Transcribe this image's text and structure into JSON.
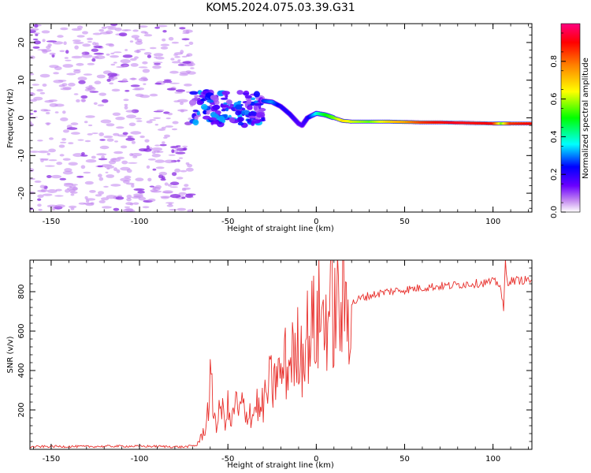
{
  "title": "KOM5.2024.075.03.39.G31",
  "colors": {
    "snr_line": "#e8302c",
    "noise_purple": "#c58cf0",
    "noise_violet": "#8a2be2",
    "background": "#ffffff"
  },
  "colorbar": {
    "label": "Normalized spectral amplitude",
    "ticks": [
      "0.0",
      "0.2",
      "0.4",
      "0.6",
      "0.8"
    ],
    "tick_values": [
      0.0,
      0.2,
      0.4,
      0.6,
      0.8
    ],
    "range": [
      0,
      1
    ],
    "colormap": [
      "#ffffff",
      "#c58cf0",
      "#6a00ff",
      "#0000ff",
      "#00ffff",
      "#00ff00",
      "#ffff00",
      "#ff8000",
      "#ff0000",
      "#ff0080"
    ]
  },
  "chart_data": [
    {
      "type": "heatmap",
      "xlabel": "Height of straight line (km)",
      "ylabel": "Frequency (Hz)",
      "xlim": [
        -162,
        122
      ],
      "ylim": [
        -25,
        25
      ],
      "x_ticks": [
        "-150",
        "-100",
        "-50",
        "0",
        "50",
        "100"
      ],
      "x_tick_values": [
        -150,
        -100,
        -50,
        0,
        50,
        100
      ],
      "y_ticks": [
        "-20",
        "-10",
        "0",
        "10",
        "20"
      ],
      "y_tick_values": [
        -20,
        -10,
        0,
        10,
        20
      ],
      "noise_region_x": [
        -162,
        -70
      ],
      "blob_region_x": [
        -70,
        -30
      ],
      "doppler_track": {
        "x": [
          -30,
          -25,
          -20,
          -15,
          -10,
          -8,
          -5,
          0,
          5,
          10,
          15,
          20,
          30,
          40,
          50,
          60,
          70,
          80,
          90,
          100,
          105,
          110,
          122
        ],
        "y": [
          4.5,
          4.2,
          3.0,
          1.0,
          -1.5,
          -2.0,
          0.0,
          1.2,
          0.8,
          0.0,
          -0.8,
          -1.0,
          -1.0,
          -1.0,
          -1.1,
          -1.2,
          -1.2,
          -1.3,
          -1.4,
          -1.5,
          -1.5,
          -1.5,
          -1.5
        ],
        "amplitude": [
          0.35,
          0.4,
          0.3,
          0.3,
          0.25,
          0.25,
          0.3,
          0.45,
          0.55,
          0.6,
          0.7,
          0.65,
          0.6,
          0.7,
          0.75,
          0.85,
          0.9,
          0.92,
          0.9,
          0.88,
          0.6,
          0.85,
          0.9
        ]
      }
    },
    {
      "type": "line",
      "xlabel": "Height of straight line (km)",
      "ylabel": "SNR (v/v)",
      "xlim": [
        -162,
        122
      ],
      "ylim": [
        0,
        960
      ],
      "x_ticks": [
        "-150",
        "-100",
        "-50",
        "0",
        "50",
        "100"
      ],
      "x_tick_values": [
        -150,
        -100,
        -50,
        0,
        50,
        100
      ],
      "y_ticks": [
        "200",
        "400",
        "600",
        "800"
      ],
      "y_tick_values": [
        200,
        400,
        600,
        800
      ],
      "series": [
        {
          "x": [
            -162,
            -150,
            -130,
            -110,
            -90,
            -75,
            -68,
            -65,
            -62,
            -60,
            -58,
            -56,
            -54,
            -52,
            -50,
            -48,
            -46,
            -44,
            -42,
            -40,
            -38,
            -36,
            -34,
            -32,
            -30,
            -28,
            -26,
            -24,
            -22,
            -20,
            -18,
            -16,
            -14,
            -12,
            -10,
            -8,
            -6,
            -4,
            -2,
            0,
            2,
            4,
            6,
            8,
            10,
            12,
            14,
            16,
            18,
            20,
            22,
            24,
            26,
            28,
            30,
            35,
            40,
            45,
            50,
            55,
            60,
            65,
            70,
            75,
            80,
            85,
            90,
            95,
            100,
            104,
            106,
            107,
            108,
            110,
            115,
            122
          ],
          "y": [
            12,
            15,
            14,
            16,
            15,
            12,
            20,
            60,
            140,
            330,
            200,
            120,
            230,
            150,
            210,
            110,
            260,
            170,
            240,
            140,
            220,
            160,
            250,
            180,
            230,
            280,
            350,
            300,
            420,
            340,
            460,
            380,
            520,
            420,
            560,
            470,
            600,
            560,
            640,
            600,
            700,
            650,
            680,
            720,
            690,
            720,
            700,
            730,
            720,
            740,
            750,
            760,
            770,
            775,
            780,
            790,
            800,
            805,
            810,
            815,
            820,
            825,
            828,
            830,
            835,
            840,
            842,
            845,
            850,
            840,
            700,
            950,
            850,
            855,
            858,
            860
          ]
        }
      ]
    }
  ]
}
